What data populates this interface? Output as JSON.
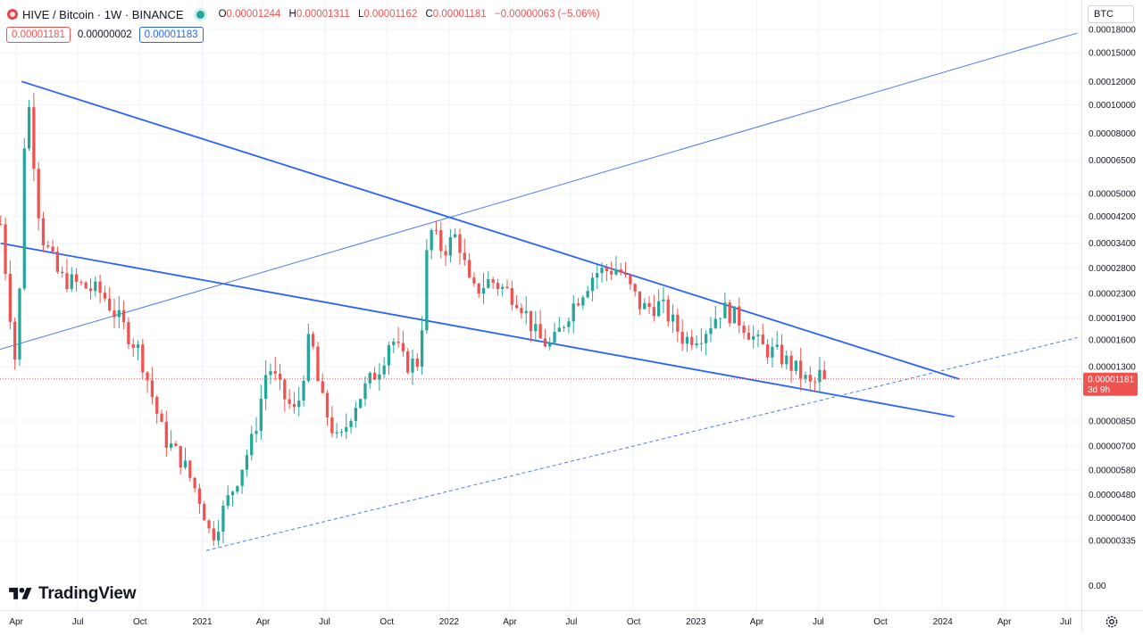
{
  "header": {
    "symbol": "HIVE / Bitcoin · 1W · BINANCE",
    "ohlc": {
      "o_label": "O",
      "o_value": "0.00001244",
      "h_label": "H",
      "h_value": "0.00001311",
      "l_label": "L",
      "l_value": "0.00001162",
      "c_label": "C",
      "c_value": "0.00001181",
      "change": "−0.00000063 (−5.06%)"
    },
    "bid": "0.00001181",
    "spread": "0.00000002",
    "ask": "0.00001183",
    "currency": "BTC"
  },
  "logo": {
    "text": "TradingView"
  },
  "icons": {
    "symbol": "hive-coin-icon",
    "live": "live-status-dot",
    "logo": "tradingview-logo-icon",
    "settings": "gear-icon"
  },
  "colors": {
    "up": "#26a69a",
    "down": "#ef5350",
    "line": "#2962ff",
    "grid": "#f0f3fa",
    "axis_text": "#131722",
    "price_tag": "#ef5350",
    "upper_line": "#4a7cf0"
  },
  "chart_data": {
    "type": "candlestick",
    "timeframe": "1W",
    "y_scale": "log",
    "y_tick_labels": [
      "0.00018000",
      "0.00015000",
      "0.00012000",
      "0.00010000",
      "0.00008000",
      "0.00006500",
      "0.00005000",
      "0.00004200",
      "0.00003400",
      "0.00002800",
      "0.00002300",
      "0.00001900",
      "0.00001600",
      "0.00001300",
      "0.00000850",
      "0.00000700",
      "0.00000580",
      "0.00000480",
      "0.00000400",
      "0.00000335",
      "0.00"
    ],
    "y_ticks": [
      0.00018,
      0.00015,
      0.00012,
      0.0001,
      8e-05,
      6.5e-05,
      5e-05,
      4.2e-05,
      3.4e-05,
      2.8e-05,
      2.3e-05,
      1.9e-05,
      1.6e-05,
      1.3e-05,
      8.5e-06,
      7e-06,
      5.8e-06,
      4.8e-06,
      4e-06,
      3.35e-06
    ],
    "x_tick_labels": [
      "Apr",
      "Jul",
      "Oct",
      "2021",
      "Apr",
      "Jul",
      "Oct",
      "2022",
      "Apr",
      "Jul",
      "Oct",
      "2023",
      "Apr",
      "Jul",
      "Oct",
      "2024",
      "Apr",
      "Jul"
    ],
    "x_ticks": [
      "2020-04-01",
      "2020-07-01",
      "2020-10-01",
      "2021-01-01",
      "2021-04-01",
      "2021-07-01",
      "2021-10-01",
      "2022-01-01",
      "2022-04-01",
      "2022-07-01",
      "2022-10-01",
      "2023-01-01",
      "2023-04-01",
      "2023-07-01",
      "2023-10-01",
      "2024-01-01",
      "2024-04-01",
      "2024-07-01"
    ],
    "x_range": [
      "2020-03-08",
      "2024-07-24"
    ],
    "last_price": {
      "value": 1.181e-05,
      "label": "0.00001181",
      "countdown": "3d 9h"
    },
    "anchors": [
      [
        "2020-03-09",
        3.95e-05
      ],
      [
        "2020-04-02",
        1.2e-05
      ],
      [
        "2020-04-16",
        0.000122
      ],
      [
        "2020-05-07",
        3.7e-05
      ],
      [
        "2020-06-04",
        2.6e-05
      ],
      [
        "2020-08-06",
        2.3e-05
      ],
      [
        "2020-10-01",
        1.45e-05
      ],
      [
        "2020-11-05",
        7.5e-06
      ],
      [
        "2020-12-03",
        6.2e-06
      ],
      [
        "2020-12-31",
        4.5e-06
      ],
      [
        "2021-01-14",
        3.4e-06
      ],
      [
        "2021-02-18",
        5.2e-06
      ],
      [
        "2021-03-18",
        7.5e-06
      ],
      [
        "2021-04-08",
        1.33e-05
      ],
      [
        "2021-04-29",
        1.05e-05
      ],
      [
        "2021-05-20",
        8.9e-06
      ],
      [
        "2021-06-10",
        1.7e-05
      ],
      [
        "2021-06-24",
        1.04e-05
      ],
      [
        "2021-07-22",
        7e-06
      ],
      [
        "2021-08-12",
        9.5e-06
      ],
      [
        "2021-09-23",
        1.33e-05
      ],
      [
        "2021-10-07",
        1.65e-05
      ],
      [
        "2021-10-28",
        1.32e-05
      ],
      [
        "2021-11-18",
        1.35e-05
      ],
      [
        "2021-12-02",
        3.85e-05
      ],
      [
        "2021-12-23",
        3.2e-05
      ],
      [
        "2022-01-13",
        3.65e-05
      ],
      [
        "2022-02-03",
        2.3e-05
      ],
      [
        "2022-03-03",
        2.55e-05
      ],
      [
        "2022-04-14",
        2.2e-05
      ],
      [
        "2022-05-12",
        1.62e-05
      ],
      [
        "2022-06-02",
        1.52e-05
      ],
      [
        "2022-06-30",
        2.05e-05
      ],
      [
        "2022-08-04",
        2.7e-05
      ],
      [
        "2022-09-08",
        2.8e-05
      ],
      [
        "2022-10-13",
        2.05e-05
      ],
      [
        "2022-11-10",
        2.1e-05
      ],
      [
        "2022-12-15",
        1.6e-05
      ],
      [
        "2023-01-12",
        1.7e-05
      ],
      [
        "2023-02-09",
        2.05e-05
      ],
      [
        "2023-03-09",
        1.85e-05
      ],
      [
        "2023-04-06",
        1.52e-05
      ],
      [
        "2023-05-04",
        1.42e-05
      ],
      [
        "2023-06-01",
        1.25e-05
      ],
      [
        "2023-06-22",
        1.1e-05
      ],
      [
        "2023-07-06",
        1.25e-05
      ],
      [
        "2023-07-13",
        1.18e-05
      ]
    ],
    "trendlines": [
      {
        "name": "upper-resistance",
        "from": [
          "2020-04-09",
          0.00012
        ],
        "to": [
          "2024-01-25",
          1.18e-05
        ],
        "style": "solid",
        "width": 2
      },
      {
        "name": "lower-falling-support",
        "from": [
          "2020-03-09",
          3.4e-05
        ],
        "to": [
          "2024-01-18",
          8.8e-06
        ],
        "style": "solid",
        "width": 2
      },
      {
        "name": "rising-channel-upper",
        "from": [
          "2020-03-05",
          1.48e-05
        ],
        "to": [
          "2024-07-18",
          0.000175
        ],
        "style": "solid",
        "width": 1
      },
      {
        "name": "rising-channel-lower",
        "from": [
          "2021-01-07",
          3.1e-06
        ],
        "to": [
          "2024-07-18",
          1.63e-05
        ],
        "style": "dashed",
        "width": 1
      }
    ]
  }
}
